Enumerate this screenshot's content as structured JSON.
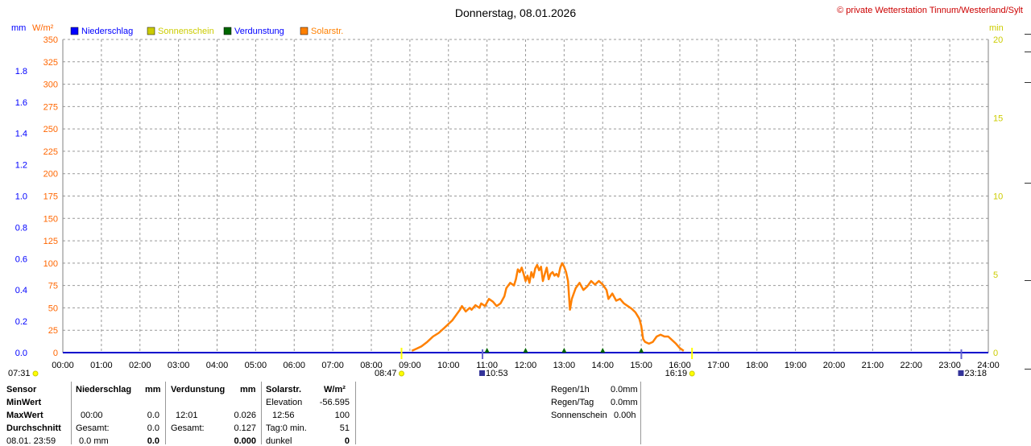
{
  "title": "Donnerstag, 08.01.2026",
  "copyright": "© private Wetterstation Tinnum/Westerland/Sylt",
  "left_units": {
    "mm": "mm",
    "wm2": "W/m²"
  },
  "right_unit": "min",
  "legend": [
    {
      "label": "Niederschlag",
      "color": "#0000ff",
      "text_color": "#0000ff"
    },
    {
      "label": "Sonnenschein",
      "color": "#cccc00",
      "text_color": "#cccc00"
    },
    {
      "label": "Verdunstung",
      "color": "#006600",
      "text_color": "#0000ff"
    },
    {
      "label": "Solarstr.",
      "color": "#ff8000",
      "text_color": "#ff8000"
    }
  ],
  "colors": {
    "mm_axis": "#0000ff",
    "wm2_axis": "#ff6600",
    "min_axis": "#cccc00",
    "grid": "#999999"
  },
  "chart_data": {
    "type": "line",
    "x_ticks": [
      "00:00",
      "01:00",
      "02:00",
      "03:00",
      "04:00",
      "05:00",
      "06:00",
      "07:00",
      "08:00",
      "09:00",
      "10:00",
      "11:00",
      "12:00",
      "13:00",
      "14:00",
      "15:00",
      "16:00",
      "17:00",
      "18:00",
      "19:00",
      "20:00",
      "21:00",
      "22:00",
      "23:00",
      "24:00"
    ],
    "y_mm_ticks": [
      "0.0",
      "0.2",
      "0.4",
      "0.6",
      "0.8",
      "1.0",
      "1.2",
      "1.4",
      "1.6",
      "1.8"
    ],
    "y_mm_range": [
      0,
      2.0
    ],
    "y_wm2_ticks": [
      "0",
      "25",
      "50",
      "75",
      "100",
      "125",
      "150",
      "175",
      "200",
      "225",
      "250",
      "275",
      "300",
      "325",
      "350"
    ],
    "y_wm2_range": [
      0,
      350
    ],
    "y_min_ticks": [
      "0",
      "5",
      "10",
      "15",
      "20"
    ],
    "y_min_range": [
      0,
      20
    ],
    "grid": true,
    "series": [
      {
        "name": "Solarstr.",
        "color": "#ff8000",
        "points": [
          [
            9.05,
            2
          ],
          [
            9.15,
            4
          ],
          [
            9.3,
            7
          ],
          [
            9.45,
            12
          ],
          [
            9.6,
            18
          ],
          [
            9.75,
            22
          ],
          [
            9.9,
            28
          ],
          [
            10.0,
            32
          ],
          [
            10.1,
            36
          ],
          [
            10.2,
            42
          ],
          [
            10.3,
            48
          ],
          [
            10.35,
            52
          ],
          [
            10.45,
            46
          ],
          [
            10.55,
            50
          ],
          [
            10.6,
            48
          ],
          [
            10.7,
            53
          ],
          [
            10.8,
            50
          ],
          [
            10.85,
            55
          ],
          [
            10.95,
            52
          ],
          [
            11.05,
            60
          ],
          [
            11.15,
            57
          ],
          [
            11.25,
            52
          ],
          [
            11.35,
            55
          ],
          [
            11.45,
            63
          ],
          [
            11.5,
            72
          ],
          [
            11.6,
            78
          ],
          [
            11.7,
            75
          ],
          [
            11.75,
            82
          ],
          [
            11.8,
            93
          ],
          [
            11.85,
            90
          ],
          [
            11.9,
            95
          ],
          [
            11.95,
            88
          ],
          [
            12.0,
            80
          ],
          [
            12.05,
            86
          ],
          [
            12.1,
            78
          ],
          [
            12.15,
            90
          ],
          [
            12.2,
            84
          ],
          [
            12.25,
            94
          ],
          [
            12.3,
            98
          ],
          [
            12.35,
            92
          ],
          [
            12.4,
            96
          ],
          [
            12.45,
            80
          ],
          [
            12.5,
            88
          ],
          [
            12.55,
            95
          ],
          [
            12.6,
            82
          ],
          [
            12.65,
            88
          ],
          [
            12.7,
            90
          ],
          [
            12.75,
            86
          ],
          [
            12.8,
            88
          ],
          [
            12.85,
            85
          ],
          [
            12.9,
            95
          ],
          [
            12.95,
            100
          ],
          [
            13.0,
            96
          ],
          [
            13.05,
            90
          ],
          [
            13.1,
            80
          ],
          [
            13.15,
            48
          ],
          [
            13.2,
            60
          ],
          [
            13.3,
            72
          ],
          [
            13.4,
            78
          ],
          [
            13.5,
            70
          ],
          [
            13.6,
            74
          ],
          [
            13.7,
            80
          ],
          [
            13.8,
            76
          ],
          [
            13.9,
            80
          ],
          [
            14.0,
            76
          ],
          [
            14.1,
            70
          ],
          [
            14.15,
            60
          ],
          [
            14.25,
            66
          ],
          [
            14.35,
            58
          ],
          [
            14.45,
            60
          ],
          [
            14.55,
            55
          ],
          [
            14.65,
            52
          ],
          [
            14.75,
            49
          ],
          [
            14.85,
            45
          ],
          [
            14.95,
            38
          ],
          [
            15.0,
            30
          ],
          [
            15.05,
            15
          ],
          [
            15.1,
            12
          ],
          [
            15.2,
            10
          ],
          [
            15.3,
            12
          ],
          [
            15.4,
            18
          ],
          [
            15.5,
            20
          ],
          [
            15.6,
            18
          ],
          [
            15.7,
            18
          ],
          [
            15.8,
            14
          ],
          [
            15.9,
            10
          ],
          [
            16.0,
            5
          ],
          [
            16.1,
            2
          ]
        ]
      }
    ]
  },
  "sun_events": {
    "sunrise": "08:47",
    "sunset": "16:19"
  },
  "moon_events": {
    "left_time": "07:31",
    "mid_time": "10:53",
    "right_time": "23:18"
  },
  "stats": {
    "row_labels": [
      "Sensor",
      "MinWert",
      "MaxWert",
      "Durchschnitt",
      "08.01. 23:59"
    ],
    "niederschlag": {
      "header": "Niederschlag",
      "unit": "mm",
      "max_time": "00:00",
      "max_value": "0.0",
      "gesamt_label": "Gesamt:",
      "gesamt_value": "0.0",
      "last_value": "0.0 mm",
      "last_value2": "0.0"
    },
    "verdunstung": {
      "header": "Verdunstung",
      "unit": "mm",
      "max_time": "12:01",
      "max_value": "0.026",
      "gesamt_label": "Gesamt:",
      "gesamt_value": "0.127",
      "last_value": "0.000"
    },
    "solar": {
      "header": "Solarstr.",
      "unit": "W/m²",
      "elevation_label": "Elevation",
      "elevation_value": "-56.595",
      "max_time": "12:56",
      "max_value": "100",
      "tag_label": "Tag:0 min.",
      "tag_value": "51",
      "dunkel_label": "dunkel",
      "dunkel_value": "0"
    },
    "regen": {
      "r1h_label": "Regen/1h",
      "r1h_value": "0.0mm",
      "rtag_label": "Regen/Tag",
      "rtag_value": "0.0mm",
      "sonne_label": "Sonnenschein",
      "sonne_value": "0.00h"
    }
  }
}
